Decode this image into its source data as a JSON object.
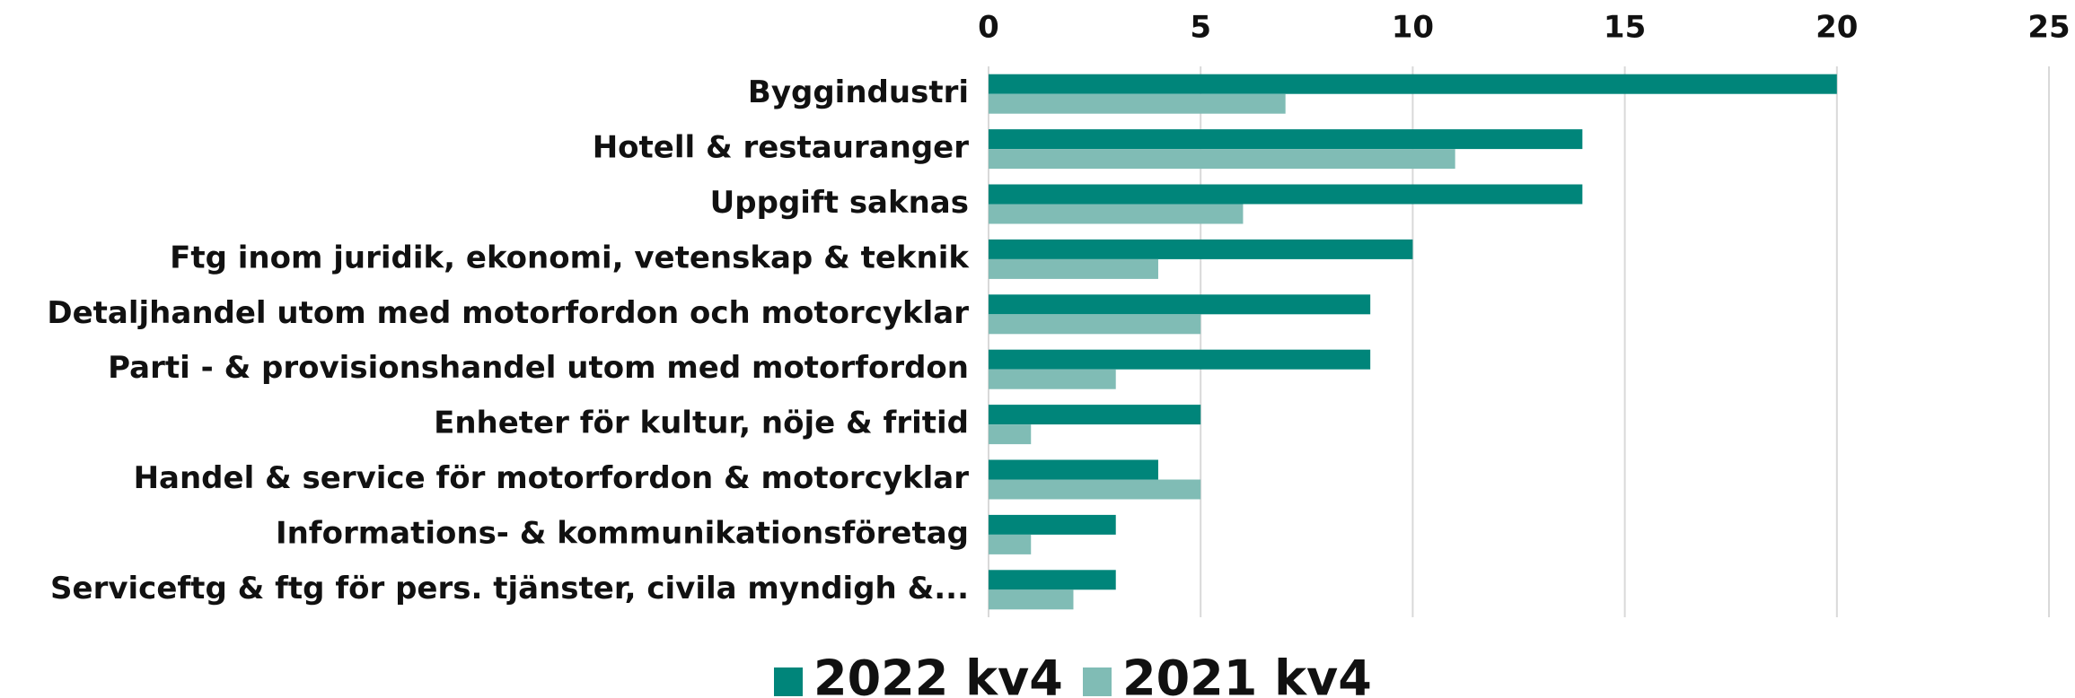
{
  "chart_data": {
    "type": "barh",
    "categories": [
      "Byggindustri",
      "Hotell & restauranger",
      "Uppgift saknas",
      "Ftg inom juridik, ekonomi, vetenskap & teknik",
      "Detaljhandel utom med motorfordon och motorcyklar",
      "Parti - & provisionshandel utom med motorfordon",
      "Enheter för kultur, nöje & fritid",
      "Handel & service för motorfordon & motorcyklar",
      "Informations- & kommunikationsföretag",
      "Serviceftg & ftg för pers. tjänster, civila myndigh &..."
    ],
    "series": [
      {
        "name": "2022 kv4",
        "color": "#00857a",
        "values": [
          20,
          14,
          14,
          10,
          9,
          9,
          5,
          4,
          3,
          3
        ]
      },
      {
        "name": "2021 kv4",
        "color": "#80bcb5",
        "values": [
          7,
          11,
          6,
          4,
          5,
          3,
          1,
          5,
          1,
          2
        ]
      }
    ],
    "xlim": [
      0,
      25
    ],
    "xticks": [
      0,
      5,
      10,
      15,
      20,
      25
    ],
    "grid": true,
    "legend": "bottom"
  }
}
